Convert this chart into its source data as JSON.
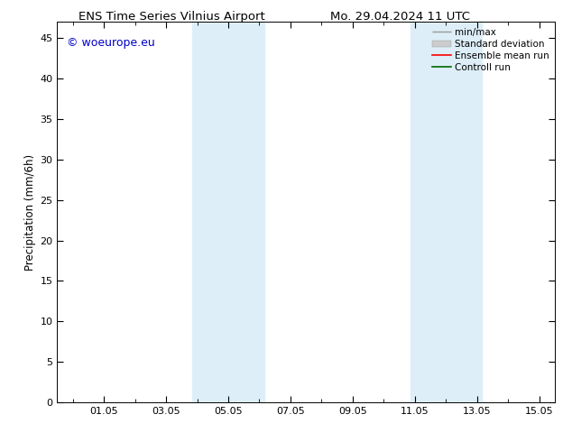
{
  "title_left": "ENS Time Series Vilnius Airport",
  "title_right": "Mo. 29.04.2024 11 UTC",
  "ylabel": "Precipitation (mm/6h)",
  "ylim": [
    0,
    47
  ],
  "yticks": [
    0,
    5,
    10,
    15,
    20,
    25,
    30,
    35,
    40,
    45
  ],
  "xlim_start": -0.5,
  "xlim_end": 15.5,
  "xtick_positions": [
    1,
    3,
    5,
    7,
    9,
    11,
    13,
    15
  ],
  "xtick_labels": [
    "01.05",
    "03.05",
    "05.05",
    "07.05",
    "09.05",
    "11.05",
    "13.05",
    "15.05"
  ],
  "shaded_bands": [
    {
      "xmin": 3.85,
      "xmax": 6.15,
      "color": "#ddeef8",
      "alpha": 1.0
    },
    {
      "xmin": 10.85,
      "xmax": 13.15,
      "color": "#ddeef8",
      "alpha": 1.0
    }
  ],
  "watermark_text": "© woeurope.eu",
  "watermark_color": "#0000cc",
  "bg_color": "#ffffff",
  "plot_bg_color": "#ffffff",
  "title_fontsize": 9.5,
  "axis_label_fontsize": 8.5,
  "tick_fontsize": 8,
  "watermark_fontsize": 9,
  "legend_fontsize": 7.5
}
